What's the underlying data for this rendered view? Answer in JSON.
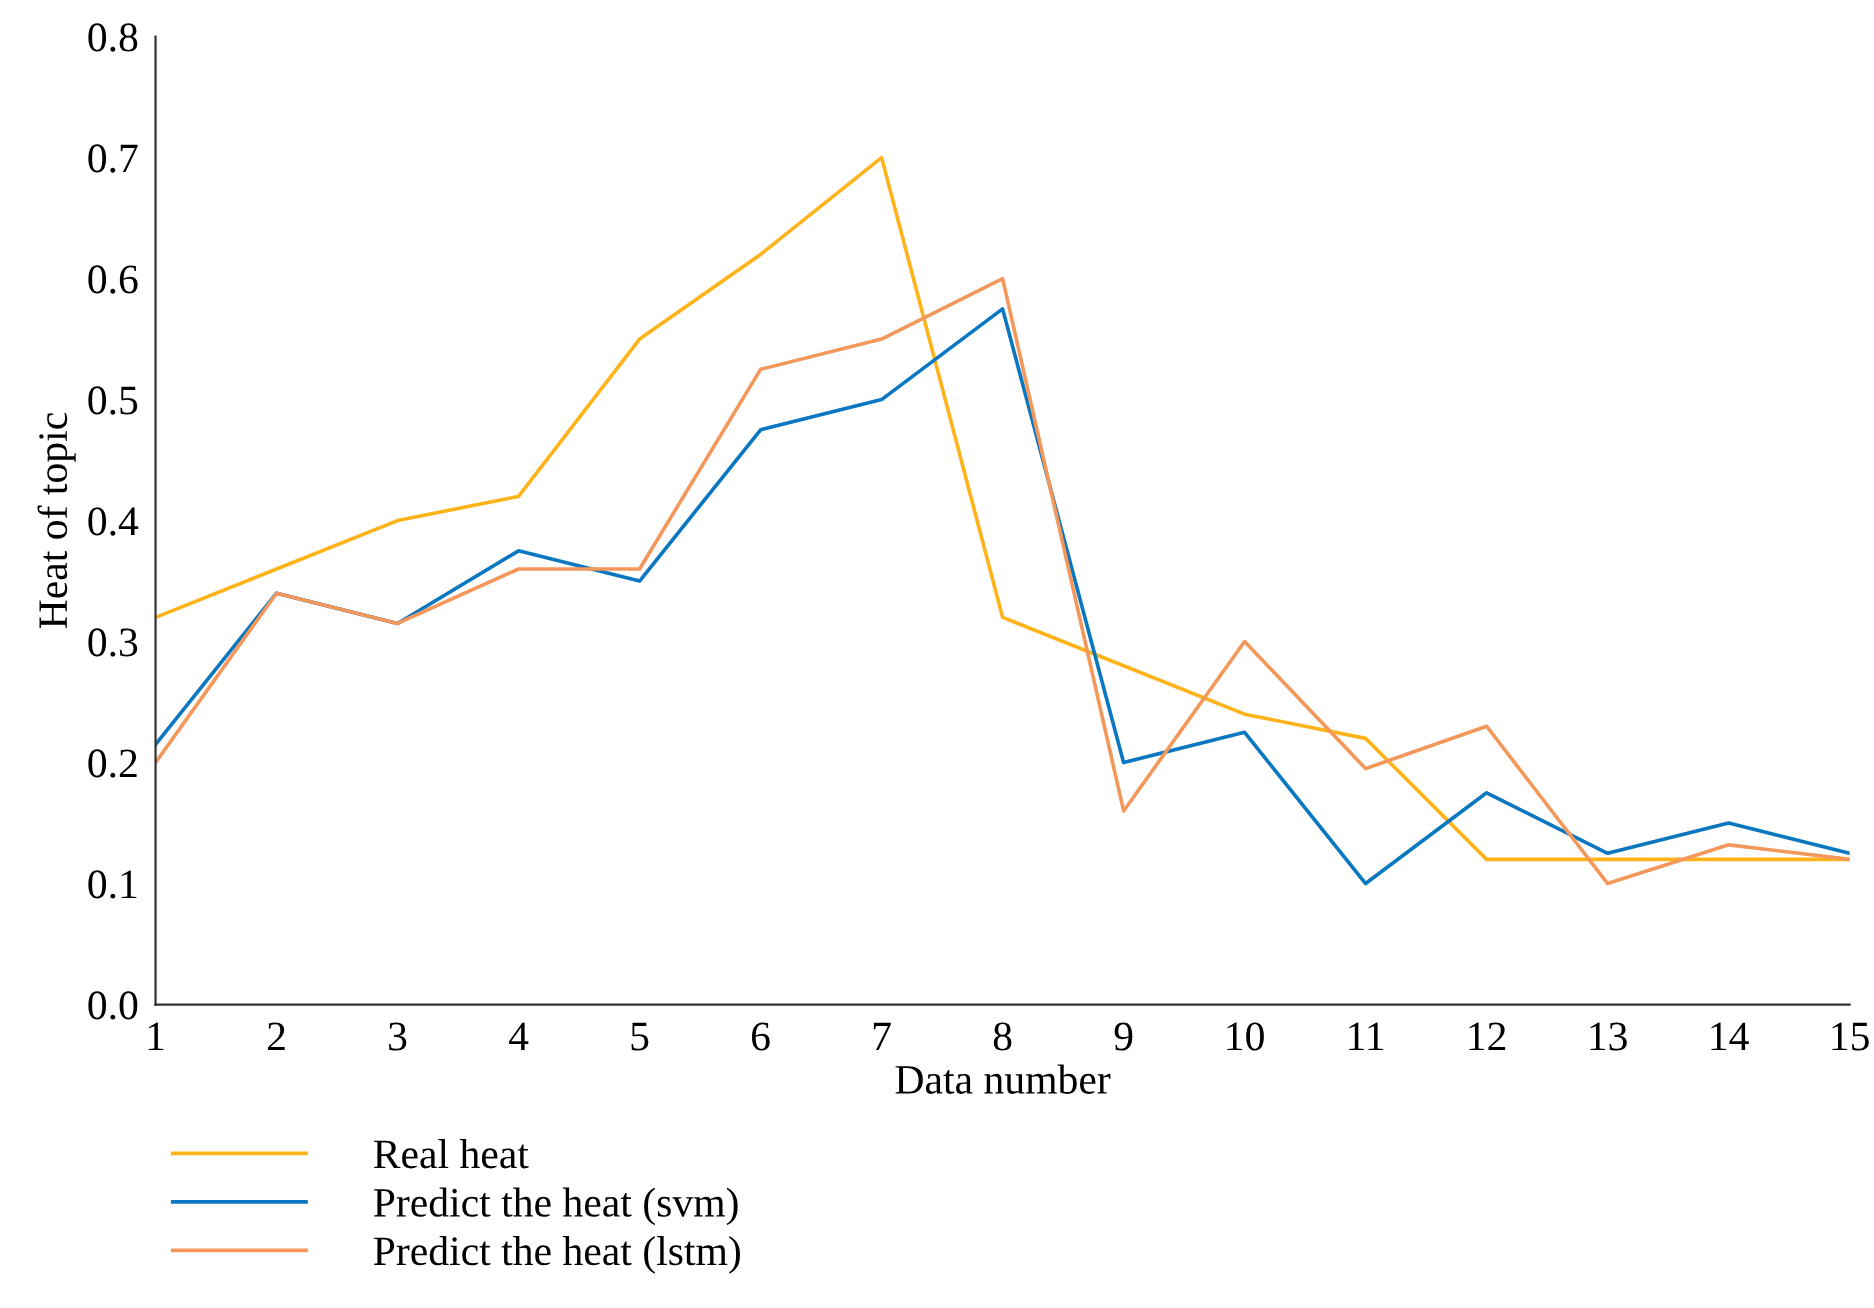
{
  "chart_data": {
    "type": "line",
    "xlabel": "Data number",
    "ylabel": "Heat of topic",
    "x": [
      1,
      2,
      3,
      4,
      5,
      6,
      7,
      8,
      9,
      10,
      11,
      12,
      13,
      14,
      15
    ],
    "series": [
      {
        "name": "Real heat",
        "color": "#ffb31a",
        "values": [
          0.32,
          0.36,
          0.4,
          0.42,
          0.55,
          0.62,
          0.7,
          0.32,
          0.28,
          0.24,
          0.22,
          0.12,
          0.12,
          0.12,
          0.12
        ]
      },
      {
        "name": "Predict the heat (svm)",
        "color": "#0a77c0",
        "values": [
          0.215,
          0.34,
          0.315,
          0.375,
          0.35,
          0.475,
          0.5,
          0.575,
          0.2,
          0.225,
          0.1,
          0.175,
          0.125,
          0.15,
          0.125
        ]
      },
      {
        "name": "Predict the heat (lstm)",
        "color": "#f4975a",
        "values": [
          0.2,
          0.34,
          0.315,
          0.36,
          0.36,
          0.525,
          0.55,
          0.6,
          0.16,
          0.3,
          0.195,
          0.23,
          0.1,
          0.132,
          0.12
        ]
      }
    ],
    "xlim": [
      1,
      15
    ],
    "xticks": [
      1,
      2,
      3,
      4,
      5,
      6,
      7,
      8,
      9,
      10,
      11,
      12,
      13,
      14,
      15
    ],
    "ylim": [
      0,
      0.8
    ],
    "yticks": [
      {
        "value": 0,
        "label": "0.0"
      },
      {
        "value": 0.1,
        "label": "0.1"
      },
      {
        "value": 0.2,
        "label": "0.2"
      },
      {
        "value": 0.3,
        "label": "0.3"
      },
      {
        "value": 0.4,
        "label": "0.4"
      },
      {
        "value": 0.5,
        "label": "0.5"
      },
      {
        "value": 0.6,
        "label": "0.6"
      },
      {
        "value": 0.7,
        "label": "0.7"
      },
      {
        "value": 0.8,
        "label": "0.8"
      }
    ],
    "grid": false,
    "legend": "bottom left",
    "marker": "none",
    "line_style": "solid"
  }
}
